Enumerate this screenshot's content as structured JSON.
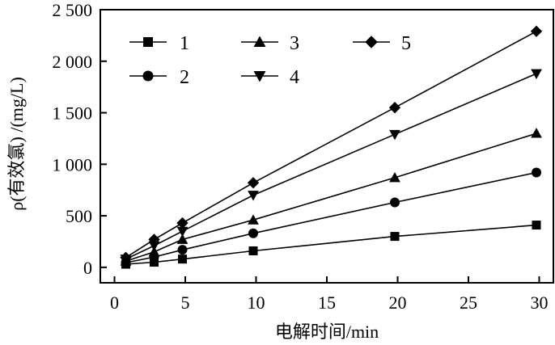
{
  "chart_data": {
    "type": "line",
    "xlabel": "电解时间/min",
    "ylabel": "ρ(有效氯) /(mg/L)",
    "xlim": [
      -1,
      31
    ],
    "ylim": [
      -150,
      2500
    ],
    "xticks": [
      0,
      5,
      10,
      15,
      20,
      25,
      30
    ],
    "yticks": [
      0,
      500,
      1000,
      1500,
      2000,
      2500
    ],
    "xtick_labels": [
      "0",
      "5",
      "10",
      "15",
      "20",
      "25",
      "30"
    ],
    "ytick_labels": [
      "0",
      "500",
      "1 000",
      "1 500",
      "2 000",
      "2 500"
    ],
    "grid": false,
    "legend_position": "top",
    "x": [
      0.8,
      2.8,
      4.8,
      9.8,
      19.8,
      29.8
    ],
    "series": [
      {
        "name": "1",
        "marker": "square",
        "values": [
          30,
          50,
          80,
          160,
          300,
          410
        ]
      },
      {
        "name": "2",
        "marker": "circle",
        "values": [
          45,
          100,
          170,
          330,
          630,
          920
        ]
      },
      {
        "name": "3",
        "marker": "triangle-up",
        "values": [
          60,
          150,
          270,
          460,
          870,
          1300
        ]
      },
      {
        "name": "4",
        "marker": "triangle-down",
        "values": [
          80,
          210,
          350,
          700,
          1290,
          1880
        ]
      },
      {
        "name": "5",
        "marker": "diamond",
        "values": [
          95,
          270,
          430,
          820,
          1550,
          2290
        ]
      }
    ]
  }
}
